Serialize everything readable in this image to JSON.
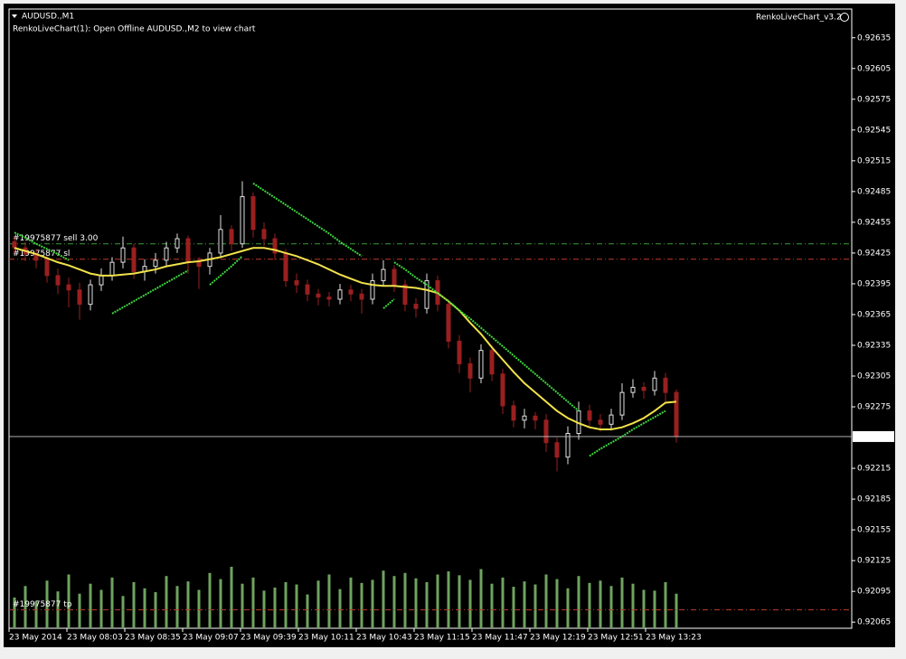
{
  "chart_data": {
    "type": "candlestick",
    "title": "AUDUSD.,M1",
    "subtitle": "RenkoLiveChart(1): Open Offline AUDUSD.,M2 to view chart",
    "indicator_label": "RenkoLiveChart_v3.2",
    "xticks": [
      "23 May 2014",
      "23 May 08:03",
      "23 May 08:35",
      "23 May 09:07",
      "23 May 09:39",
      "23 May 10:11",
      "23 May 10:43",
      "23 May 11:15",
      "23 May 11:47",
      "23 May 12:19",
      "23 May 12:51",
      "23 May 13:23"
    ],
    "open": [
      0.92436,
      0.9243,
      0.92424,
      0.92418,
      0.92403,
      0.92394,
      0.92389,
      0.92375,
      0.92394,
      0.92403,
      0.92416,
      0.9243,
      0.92407,
      0.92412,
      0.92418,
      0.9243,
      0.92439,
      0.92416,
      0.92412,
      0.92425,
      0.92448,
      0.92434,
      0.9248,
      0.92448,
      0.92439,
      0.92425,
      0.92398,
      0.92394,
      0.92385,
      0.92382,
      0.9238,
      0.92389,
      0.92385,
      0.9238,
      0.92398,
      0.92409,
      0.92394,
      0.92375,
      0.92371,
      0.92398,
      0.92375,
      0.92339,
      0.92317,
      0.92303,
      0.9233,
      0.92307,
      0.92276,
      0.92262,
      0.92266,
      0.92262,
      0.9224,
      0.92226,
      0.92249,
      0.92271,
      0.92262,
      0.92258,
      0.92267,
      0.92289,
      0.92294,
      0.92291,
      0.92303,
      0.92289
    ],
    "high": [
      0.92441,
      0.92436,
      0.92429,
      0.92422,
      0.9241,
      0.92401,
      0.92396,
      0.92399,
      0.9241,
      0.92421,
      0.92441,
      0.92434,
      0.92419,
      0.92425,
      0.92436,
      0.92444,
      0.92442,
      0.92421,
      0.9243,
      0.92462,
      0.92452,
      0.92495,
      0.92484,
      0.92455,
      0.92444,
      0.92429,
      0.92405,
      0.92399,
      0.9239,
      0.92387,
      0.92395,
      0.92394,
      0.9239,
      0.92405,
      0.92418,
      0.92413,
      0.92399,
      0.92381,
      0.92405,
      0.92403,
      0.9238,
      0.92345,
      0.92323,
      0.92336,
      0.92335,
      0.92312,
      0.92281,
      0.92273,
      0.9227,
      0.92268,
      0.92245,
      0.92256,
      0.9228,
      0.92277,
      0.92268,
      0.92273,
      0.92298,
      0.92302,
      0.92299,
      0.9231,
      0.92308,
      0.92292
    ],
    "low": [
      0.92424,
      0.92417,
      0.9241,
      0.92396,
      0.92385,
      0.92372,
      0.9236,
      0.92369,
      0.92388,
      0.92398,
      0.9241,
      0.924,
      0.92398,
      0.92405,
      0.92412,
      0.92425,
      0.92405,
      0.9239,
      0.92404,
      0.9242,
      0.92427,
      0.9243,
      0.9244,
      0.92432,
      0.92418,
      0.92392,
      0.92386,
      0.92378,
      0.92374,
      0.92373,
      0.92375,
      0.92378,
      0.92366,
      0.92375,
      0.92393,
      0.92387,
      0.92368,
      0.92362,
      0.92366,
      0.92368,
      0.92332,
      0.92308,
      0.92289,
      0.92298,
      0.923,
      0.92268,
      0.92255,
      0.92254,
      0.92253,
      0.92231,
      0.92212,
      0.92219,
      0.92243,
      0.92255,
      0.92251,
      0.92252,
      0.92262,
      0.92284,
      0.92283,
      0.92286,
      0.9228,
      0.9224
    ],
    "close": [
      0.9243,
      0.92424,
      0.92418,
      0.92403,
      0.92394,
      0.92389,
      0.92375,
      0.92394,
      0.92403,
      0.92416,
      0.9243,
      0.92407,
      0.92412,
      0.92418,
      0.9243,
      0.92439,
      0.92416,
      0.92412,
      0.92425,
      0.92448,
      0.92434,
      0.9248,
      0.92448,
      0.92439,
      0.92425,
      0.92398,
      0.92394,
      0.92385,
      0.92382,
      0.9238,
      0.92389,
      0.92385,
      0.9238,
      0.92398,
      0.92409,
      0.92394,
      0.92375,
      0.92371,
      0.92398,
      0.92375,
      0.92339,
      0.92317,
      0.92303,
      0.9233,
      0.92307,
      0.92276,
      0.92262,
      0.92266,
      0.92262,
      0.9224,
      0.92226,
      0.92249,
      0.92271,
      0.92262,
      0.92258,
      0.92267,
      0.92289,
      0.92294,
      0.92291,
      0.92303,
      0.92289,
      0.92246
    ],
    "up_color": "#e0e0e0",
    "down_color": "#9a1f1f",
    "volume": [
      40,
      55,
      35,
      62,
      48,
      70,
      45,
      58,
      50,
      66,
      42,
      60,
      52,
      47,
      68,
      55,
      61,
      50,
      72,
      64,
      80,
      58,
      66,
      49,
      53,
      60,
      57,
      44,
      62,
      70,
      51,
      66,
      59,
      63,
      75,
      68,
      72,
      65,
      60,
      70,
      74,
      69,
      63,
      77,
      58,
      66,
      54,
      61,
      57,
      70,
      64,
      52,
      68,
      59,
      62,
      55,
      66,
      58,
      50,
      49,
      60,
      45
    ],
    "volume_color": "#6fa35f",
    "volume_lim": [
      0,
      100
    ],
    "lines": [
      {
        "color": "#f2e24a",
        "values": [
          0.9243,
          0.92427,
          0.92424,
          0.9242,
          0.92416,
          0.92413,
          0.92409,
          0.92405,
          0.92403,
          0.92403,
          0.92404,
          0.92405,
          0.92407,
          0.92409,
          0.92412,
          0.92414,
          0.92416,
          0.92417,
          0.92419,
          0.92421,
          0.92424,
          0.92427,
          0.9243,
          0.9243,
          0.92428,
          0.92425,
          0.92422,
          0.92418,
          0.92414,
          0.92409,
          0.92404,
          0.924,
          0.92396,
          0.92394,
          0.92393,
          0.92393,
          0.92392,
          0.92391,
          0.92389,
          0.92386,
          0.92378,
          0.92369,
          0.92357,
          0.92346,
          0.92333,
          0.92321,
          0.92309,
          0.92298,
          0.92289,
          0.9228,
          0.92271,
          0.92264,
          0.92259,
          0.92255,
          0.92253,
          0.92253,
          0.92255,
          0.92259,
          0.92264,
          0.92271,
          0.92279,
          0.9228
        ]
      },
      {
        "color": "#3fd43f",
        "values": [
          0.92445,
          0.9244,
          0.92434,
          0.92429,
          0.92424,
          0.92418,
          null,
          null,
          null,
          null,
          null,
          null,
          null,
          null,
          null,
          null,
          null,
          null,
          null,
          null,
          null,
          null,
          0.92493,
          0.92486,
          0.92479,
          0.92472,
          0.92465,
          0.92458,
          0.92451,
          0.92444,
          0.92436,
          0.92429,
          0.92422,
          null,
          null,
          0.92416,
          0.92409,
          0.92401,
          0.92394,
          0.92386,
          0.92378,
          0.92369,
          0.92361,
          0.92352,
          0.92343,
          0.92334,
          0.92325,
          0.92316,
          0.92307,
          0.92298,
          0.92289,
          0.9228,
          0.92271,
          null,
          null,
          null,
          null,
          null,
          null,
          null,
          null,
          null
        ]
      },
      {
        "color": "#3fd43f",
        "values": [
          null,
          null,
          null,
          null,
          null,
          null,
          null,
          null,
          null,
          0.92366,
          0.92372,
          0.92378,
          0.92384,
          0.9239,
          0.92396,
          0.92402,
          0.92408,
          null,
          0.92394,
          0.92403,
          0.92412,
          0.92422,
          null,
          null,
          null,
          null,
          null,
          null,
          null,
          null,
          null,
          null,
          null,
          null,
          0.92371,
          0.9238,
          null,
          null,
          null,
          null,
          null,
          null,
          null,
          null,
          null,
          null,
          null,
          null,
          null,
          null,
          null,
          null,
          null,
          0.92227,
          0.92234,
          0.9224,
          0.92246,
          0.92253,
          0.92259,
          0.92265,
          0.92271,
          null
        ]
      }
    ],
    "levels": [
      {
        "label": "#19975877  sell 3.00",
        "value": 0.92434,
        "color": "#3c9a3c"
      },
      {
        "label": "#19975877  sl",
        "value": 0.92419,
        "color": "#c0392b"
      },
      {
        "label": "#19975877  tp",
        "value": 0.92077,
        "color": "#c0392b"
      }
    ],
    "bid": 0.92246,
    "ylim": [
      0.92059,
      0.92663
    ],
    "yticks": [
      {
        "value": 0.92635,
        "label": "0.92635"
      },
      {
        "value": 0.92605,
        "label": "0.92605"
      },
      {
        "value": 0.92575,
        "label": "0.92575"
      },
      {
        "value": 0.92545,
        "label": "0.92545"
      },
      {
        "value": 0.92515,
        "label": "0.92515"
      },
      {
        "value": 0.92485,
        "label": "0.92485"
      },
      {
        "value": 0.92455,
        "label": "0.92455"
      },
      {
        "value": 0.92425,
        "label": "0.92425"
      },
      {
        "value": 0.92395,
        "label": "0.92395"
      },
      {
        "value": 0.92365,
        "label": "0.92365"
      },
      {
        "value": 0.92335,
        "label": "0.92335"
      },
      {
        "value": 0.92305,
        "label": "0.92305"
      },
      {
        "value": 0.92275,
        "label": "0.92275"
      },
      {
        "value": 0.92215,
        "label": "0.92215"
      },
      {
        "value": 0.92185,
        "label": "0.92185"
      },
      {
        "value": 0.92155,
        "label": "0.92155"
      },
      {
        "value": 0.92125,
        "label": "0.92125"
      },
      {
        "value": 0.92095,
        "label": "0.92095"
      },
      {
        "value": 0.92065,
        "label": "0.92065"
      }
    ]
  }
}
